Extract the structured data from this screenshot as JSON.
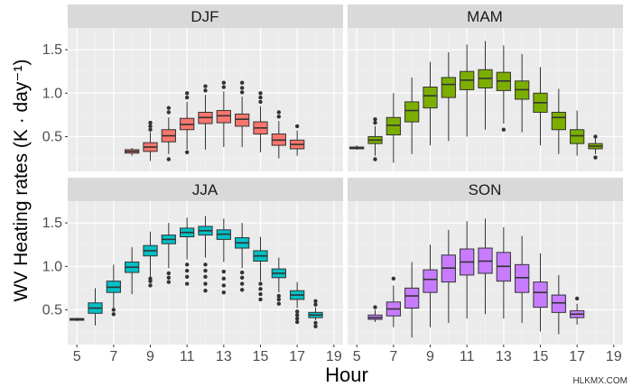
{
  "chart_data": {
    "type": "boxplot",
    "xlabel": "Hour",
    "ylabel": "WV Heating rates (K · day⁻¹)",
    "xlim": [
      4.5,
      19.5
    ],
    "ylim": [
      0.1,
      1.75
    ],
    "x_ticks": [
      "5",
      "7",
      "9",
      "11",
      "13",
      "15",
      "17",
      "19"
    ],
    "y_ticks": [
      "0.5",
      "1.0",
      "1.5"
    ],
    "grid": true,
    "panels": [
      {
        "name": "DJF",
        "color": "#F8766D",
        "boxes": [
          {
            "hour": 8,
            "min": 0.28,
            "q1": 0.31,
            "median": 0.33,
            "q3": 0.35,
            "max": 0.37
          },
          {
            "hour": 9,
            "min": 0.22,
            "q1": 0.33,
            "median": 0.38,
            "q3": 0.43,
            "max": 0.55,
            "outliers_high": [
              0.58,
              0.62,
              0.66
            ]
          },
          {
            "hour": 10,
            "min": 0.3,
            "q1": 0.44,
            "median": 0.51,
            "q3": 0.58,
            "max": 0.72,
            "outliers_low": [
              0.24
            ],
            "outliers_high": [
              0.78,
              0.83
            ]
          },
          {
            "hour": 11,
            "min": 0.35,
            "q1": 0.58,
            "median": 0.64,
            "q3": 0.71,
            "max": 0.9,
            "outliers_low": [
              0.32
            ],
            "outliers_high": [
              0.95,
              1.0
            ]
          },
          {
            "hour": 12,
            "min": 0.35,
            "q1": 0.65,
            "median": 0.72,
            "q3": 0.78,
            "max": 0.98,
            "outliers_high": [
              1.03,
              1.08
            ]
          },
          {
            "hour": 13,
            "min": 0.38,
            "q1": 0.66,
            "median": 0.74,
            "q3": 0.8,
            "max": 1.02,
            "outliers_high": [
              1.07,
              1.12
            ]
          },
          {
            "hour": 14,
            "min": 0.38,
            "q1": 0.62,
            "median": 0.7,
            "q3": 0.76,
            "max": 0.96,
            "outliers_high": [
              1.01,
              1.06,
              1.12
            ]
          },
          {
            "hour": 15,
            "min": 0.32,
            "q1": 0.53,
            "median": 0.6,
            "q3": 0.67,
            "max": 0.85,
            "outliers_high": [
              0.9,
              0.95,
              1.0
            ]
          },
          {
            "hour": 16,
            "min": 0.25,
            "q1": 0.4,
            "median": 0.46,
            "q3": 0.53,
            "max": 0.68,
            "outliers_high": [
              0.73,
              0.78
            ]
          },
          {
            "hour": 17,
            "min": 0.28,
            "q1": 0.36,
            "median": 0.41,
            "q3": 0.46,
            "max": 0.57,
            "outliers_high": [
              0.62
            ]
          }
        ]
      },
      {
        "name": "MAM",
        "color": "#7CAE00",
        "boxes": [
          {
            "hour": 5,
            "min": 0.35,
            "q1": 0.36,
            "median": 0.37,
            "q3": 0.38,
            "max": 0.4
          },
          {
            "hour": 6,
            "min": 0.28,
            "q1": 0.42,
            "median": 0.46,
            "q3": 0.5,
            "max": 0.62,
            "outliers_low": [
              0.24
            ],
            "outliers_high": [
              0.66,
              0.7
            ]
          },
          {
            "hour": 7,
            "min": 0.2,
            "q1": 0.52,
            "median": 0.63,
            "q3": 0.72,
            "max": 1.0
          },
          {
            "hour": 8,
            "min": 0.3,
            "q1": 0.67,
            "median": 0.8,
            "q3": 0.9,
            "max": 1.18
          },
          {
            "hour": 9,
            "min": 0.4,
            "q1": 0.83,
            "median": 0.97,
            "q3": 1.07,
            "max": 1.36
          },
          {
            "hour": 10,
            "min": 0.45,
            "q1": 0.95,
            "median": 1.1,
            "q3": 1.18,
            "max": 1.47
          },
          {
            "hour": 11,
            "min": 0.5,
            "q1": 1.04,
            "median": 1.15,
            "q3": 1.25,
            "max": 1.56
          },
          {
            "hour": 12,
            "min": 0.58,
            "q1": 1.06,
            "median": 1.17,
            "q3": 1.27,
            "max": 1.6
          },
          {
            "hour": 13,
            "min": 0.65,
            "q1": 1.03,
            "median": 1.14,
            "q3": 1.24,
            "max": 1.55,
            "outliers_low": [
              0.58
            ]
          },
          {
            "hour": 14,
            "min": 0.55,
            "q1": 0.93,
            "median": 1.04,
            "q3": 1.14,
            "max": 1.45
          },
          {
            "hour": 15,
            "min": 0.4,
            "q1": 0.78,
            "median": 0.89,
            "q3": 1.0,
            "max": 1.3
          },
          {
            "hour": 16,
            "min": 0.3,
            "q1": 0.58,
            "median": 0.72,
            "q3": 0.78,
            "max": 1.05
          },
          {
            "hour": 17,
            "min": 0.28,
            "q1": 0.42,
            "median": 0.51,
            "q3": 0.58,
            "max": 0.8
          },
          {
            "hour": 18,
            "min": 0.3,
            "q1": 0.36,
            "median": 0.39,
            "q3": 0.42,
            "max": 0.48,
            "outliers_low": [
              0.26
            ],
            "outliers_high": [
              0.5
            ]
          }
        ]
      },
      {
        "name": "JJA",
        "color": "#00BFC4",
        "boxes": [
          {
            "hour": 5,
            "min": 0.37,
            "q1": 0.38,
            "median": 0.39,
            "q3": 0.4,
            "max": 0.41
          },
          {
            "hour": 6,
            "min": 0.32,
            "q1": 0.46,
            "median": 0.52,
            "q3": 0.58,
            "max": 0.75
          },
          {
            "hour": 7,
            "min": 0.48,
            "q1": 0.7,
            "median": 0.76,
            "q3": 0.83,
            "max": 1.02,
            "outliers_low": [
              0.45,
              0.5
            ]
          },
          {
            "hour": 8,
            "min": 0.68,
            "q1": 0.93,
            "median": 0.99,
            "q3": 1.05,
            "max": 1.22
          },
          {
            "hour": 9,
            "min": 0.88,
            "q1": 1.12,
            "median": 1.18,
            "q3": 1.24,
            "max": 1.4,
            "outliers_low": [
              0.78,
              0.83,
              0.86
            ]
          },
          {
            "hour": 10,
            "min": 0.98,
            "q1": 1.26,
            "median": 1.31,
            "q3": 1.36,
            "max": 1.5,
            "outliers_low": [
              0.82,
              0.87,
              0.92
            ]
          },
          {
            "hour": 11,
            "min": 1.08,
            "q1": 1.34,
            "median": 1.39,
            "q3": 1.44,
            "max": 1.56,
            "outliers_low": [
              0.8,
              0.88,
              0.95,
              1.02
            ]
          },
          {
            "hour": 12,
            "min": 1.1,
            "q1": 1.36,
            "median": 1.41,
            "q3": 1.46,
            "max": 1.58,
            "outliers_low": [
              0.72,
              0.8,
              0.88,
              0.95,
              1.02
            ]
          },
          {
            "hour": 13,
            "min": 1.05,
            "q1": 1.31,
            "median": 1.37,
            "q3": 1.42,
            "max": 1.55,
            "outliers_low": [
              0.7,
              0.78,
              0.86,
              0.94
            ]
          },
          {
            "hour": 14,
            "min": 0.98,
            "q1": 1.21,
            "median": 1.27,
            "q3": 1.33,
            "max": 1.5,
            "outliers_low": [
              0.73,
              0.8,
              0.87,
              0.93
            ]
          },
          {
            "hour": 15,
            "min": 0.83,
            "q1": 1.06,
            "median": 1.12,
            "q3": 1.18,
            "max": 1.34,
            "outliers_low": [
              0.62,
              0.68,
              0.74,
              0.8
            ]
          },
          {
            "hour": 16,
            "min": 0.7,
            "q1": 0.87,
            "median": 0.92,
            "q3": 0.97,
            "max": 1.1,
            "outliers_low": [
              0.57,
              0.62,
              0.66
            ]
          },
          {
            "hour": 17,
            "min": 0.52,
            "q1": 0.62,
            "median": 0.67,
            "q3": 0.72,
            "max": 0.82,
            "outliers_low": [
              0.36,
              0.4,
              0.44,
              0.48
            ]
          },
          {
            "hour": 18,
            "min": 0.38,
            "q1": 0.41,
            "median": 0.44,
            "q3": 0.47,
            "max": 0.53,
            "outliers_low": [
              0.31,
              0.35
            ],
            "outliers_high": [
              0.56,
              0.6
            ]
          }
        ]
      },
      {
        "name": "SON",
        "color": "#C77CFF",
        "boxes": [
          {
            "hour": 6,
            "min": 0.36,
            "q1": 0.39,
            "median": 0.41,
            "q3": 0.44,
            "max": 0.5,
            "outliers_high": [
              0.53
            ]
          },
          {
            "hour": 7,
            "min": 0.3,
            "q1": 0.43,
            "median": 0.51,
            "q3": 0.59,
            "max": 0.78,
            "outliers_high": [
              0.86
            ]
          },
          {
            "hour": 8,
            "min": 0.18,
            "q1": 0.52,
            "median": 0.66,
            "q3": 0.75,
            "max": 1.05
          },
          {
            "hour": 9,
            "min": 0.3,
            "q1": 0.7,
            "median": 0.85,
            "q3": 0.96,
            "max": 1.25
          },
          {
            "hour": 10,
            "min": 0.35,
            "q1": 0.82,
            "median": 0.98,
            "q3": 1.13,
            "max": 1.42
          },
          {
            "hour": 11,
            "min": 0.4,
            "q1": 0.9,
            "median": 1.05,
            "q3": 1.2,
            "max": 1.52
          },
          {
            "hour": 12,
            "min": 0.45,
            "q1": 0.92,
            "median": 1.06,
            "q3": 1.21,
            "max": 1.55
          },
          {
            "hour": 13,
            "min": 0.4,
            "q1": 0.83,
            "median": 1.0,
            "q3": 1.16,
            "max": 1.45
          },
          {
            "hour": 14,
            "min": 0.35,
            "q1": 0.7,
            "median": 0.87,
            "q3": 1.02,
            "max": 1.35
          },
          {
            "hour": 15,
            "min": 0.25,
            "q1": 0.53,
            "median": 0.7,
            "q3": 0.82,
            "max": 1.15
          },
          {
            "hour": 16,
            "min": 0.22,
            "q1": 0.47,
            "median": 0.58,
            "q3": 0.67,
            "max": 0.9
          },
          {
            "hour": 17,
            "min": 0.33,
            "q1": 0.41,
            "median": 0.45,
            "q3": 0.49,
            "max": 0.57,
            "outliers_high": [
              0.63
            ]
          }
        ]
      }
    ]
  },
  "watermark": "HLKMX.COM"
}
